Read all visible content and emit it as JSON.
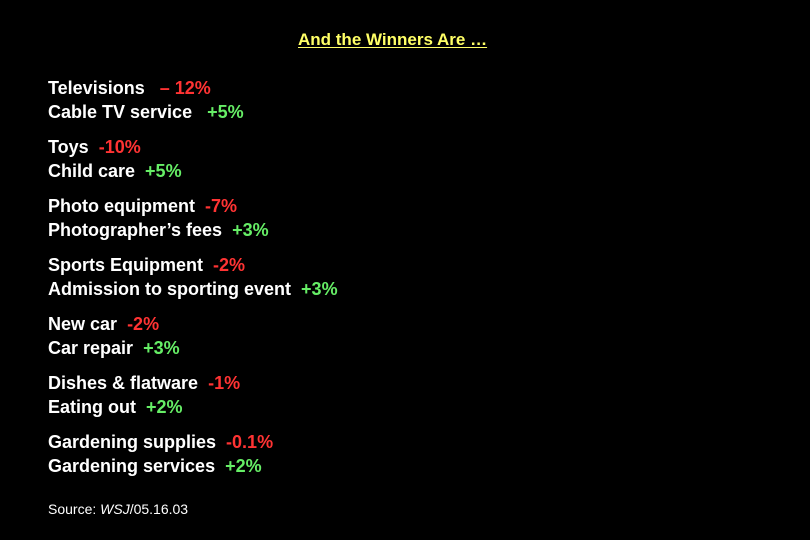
{
  "title": "And the Winners Are …",
  "items": [
    {
      "loser": {
        "name": "Televisions",
        "sep": "   ",
        "change": "– 12%"
      },
      "winner": {
        "name": "Cable TV service",
        "sep": "   ",
        "change": "+5%"
      }
    },
    {
      "loser": {
        "name": "Toys",
        "sep": "  ",
        "change": "-10%"
      },
      "winner": {
        "name": "Child care",
        "sep": "  ",
        "change": "+5%"
      }
    },
    {
      "loser": {
        "name": "Photo equipment",
        "sep": "  ",
        "change": "-7%"
      },
      "winner": {
        "name": "Photographer’s fees",
        "sep": "  ",
        "change": "+3%"
      }
    },
    {
      "loser": {
        "name": "Sports Equipment",
        "sep": "  ",
        "change": "-2%"
      },
      "winner": {
        "name": "Admission to sporting event",
        "sep": "  ",
        "change": "+3%"
      }
    },
    {
      "loser": {
        "name": "New car",
        "sep": "  ",
        "change": "-2%"
      },
      "winner": {
        "name": "Car repair",
        "sep": "  ",
        "change": "+3%"
      }
    },
    {
      "loser": {
        "name": "Dishes & flatware",
        "sep": "  ",
        "change": "-1%"
      },
      "winner": {
        "name": "Eating out",
        "sep": "  ",
        "change": "+2%"
      }
    },
    {
      "loser": {
        "name": "Gardening supplies",
        "sep": "  ",
        "change": "-0.1%"
      },
      "winner": {
        "name": "Gardening services",
        "sep": "  ",
        "change": "+2%"
      }
    }
  ],
  "source": {
    "prefix": "Source: ",
    "publication": "WSJ",
    "date": "/05.16.03"
  },
  "colors": {
    "background": "#000000",
    "title": "#ffff66",
    "negative": "#ff3333",
    "positive": "#66ee66",
    "text": "#ffffff"
  }
}
